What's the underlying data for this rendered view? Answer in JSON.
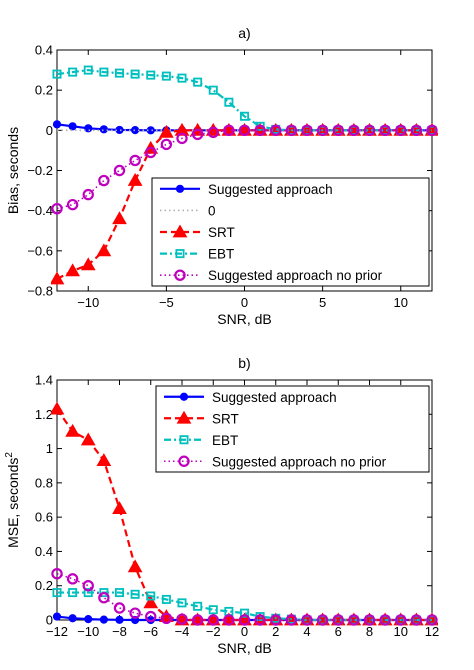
{
  "chart_data": [
    {
      "type": "line",
      "title": "a)",
      "xlabel": "SNR, dB",
      "ylabel": "Bias, seconds",
      "xlim": [
        -12,
        12
      ],
      "ylim": [
        -0.8,
        0.4
      ],
      "xticks": [
        -10,
        -5,
        0,
        5,
        10
      ],
      "yticks": [
        -0.8,
        -0.6,
        -0.4,
        -0.2,
        0,
        0.2,
        0.4
      ],
      "xtick_labels": [
        "−10",
        "−5",
        "0",
        "5",
        "10"
      ],
      "ytick_labels": [
        "−0.8",
        "−0.6",
        "−0.4",
        "−0.2",
        "0",
        "0.2",
        "0.4"
      ],
      "grid": false,
      "legend_position": "bottom-right",
      "x": [
        -12,
        -11,
        -10,
        -9,
        -8,
        -7,
        -6,
        -5,
        -4,
        -3,
        -2,
        -1,
        0,
        1,
        2,
        3,
        4,
        5,
        6,
        7,
        8,
        9,
        10,
        11,
        12
      ],
      "series": [
        {
          "name": "Suggested approach",
          "color": "#0000ff",
          "line": "solid",
          "marker": "filled-circle",
          "values": [
            0.03,
            0.02,
            0.01,
            0.005,
            0.002,
            0.001,
            0,
            0,
            0,
            0,
            0,
            0,
            0,
            0,
            0,
            0,
            0,
            0,
            0,
            0,
            0,
            0,
            0,
            0,
            0
          ]
        },
        {
          "name": "0",
          "color": "#b0b0b0",
          "line": "dotted",
          "marker": "none",
          "values": [
            0,
            0,
            0,
            0,
            0,
            0,
            0,
            0,
            0,
            0,
            0,
            0,
            0,
            0,
            0,
            0,
            0,
            0,
            0,
            0,
            0,
            0,
            0,
            0,
            0
          ]
        },
        {
          "name": "SRT",
          "color": "#ff0000",
          "line": "dashed",
          "marker": "triangle",
          "values": [
            -0.74,
            -0.7,
            -0.67,
            -0.6,
            -0.44,
            -0.25,
            -0.09,
            -0.01,
            0,
            0,
            0,
            0,
            0,
            0,
            0,
            0,
            0,
            0,
            0,
            0,
            0,
            0,
            0,
            0,
            0
          ]
        },
        {
          "name": "EBT",
          "color": "#00bfbf",
          "line": "dash-dot",
          "marker": "square",
          "values": [
            0.28,
            0.29,
            0.3,
            0.29,
            0.285,
            0.28,
            0.275,
            0.27,
            0.26,
            0.24,
            0.2,
            0.14,
            0.07,
            0.02,
            0.005,
            0,
            0,
            0,
            0,
            0,
            0,
            0,
            0,
            0,
            0
          ]
        },
        {
          "name": "Suggested approach no prior",
          "color": "#bf00bf",
          "line": "dotted",
          "marker": "circle",
          "values": [
            -0.39,
            -0.37,
            -0.32,
            -0.25,
            -0.2,
            -0.15,
            -0.11,
            -0.07,
            -0.04,
            -0.02,
            -0.01,
            0,
            0,
            0,
            0,
            0,
            0,
            0,
            0,
            0,
            0,
            0,
            0,
            0,
            0
          ]
        }
      ]
    },
    {
      "type": "line",
      "title": "b)",
      "xlabel": "SNR, dB",
      "ylabel": "MSE, seconds",
      "ylabel_superscript": "2",
      "xlim": [
        -12,
        12
      ],
      "ylim": [
        0,
        1.4
      ],
      "xticks": [
        -12,
        -10,
        -8,
        -6,
        -4,
        -2,
        0,
        2,
        4,
        6,
        8,
        10,
        12
      ],
      "yticks": [
        0,
        0.2,
        0.4,
        0.6,
        0.8,
        1,
        1.2,
        1.4
      ],
      "xtick_labels": [
        "−12",
        "−10",
        "−8",
        "−6",
        "−4",
        "−2",
        "0",
        "2",
        "4",
        "6",
        "8",
        "10",
        "12"
      ],
      "ytick_labels": [
        "0",
        "0.2",
        "0.4",
        "0.6",
        "0.8",
        "1",
        "1.2",
        "1.4"
      ],
      "grid": false,
      "legend_position": "top-right",
      "x": [
        -12,
        -11,
        -10,
        -9,
        -8,
        -7,
        -6,
        -5,
        -4,
        -3,
        -2,
        -1,
        0,
        1,
        2,
        3,
        4,
        5,
        6,
        7,
        8,
        9,
        10,
        11,
        12
      ],
      "series": [
        {
          "name": "Suggested approach",
          "color": "#0000ff",
          "line": "solid",
          "marker": "filled-circle",
          "values": [
            0.02,
            0.01,
            0.005,
            0.002,
            0.001,
            0,
            0,
            0,
            0,
            0,
            0,
            0,
            0,
            0,
            0,
            0,
            0,
            0,
            0,
            0,
            0,
            0,
            0,
            0,
            0
          ]
        },
        {
          "name": "SRT",
          "color": "#ff0000",
          "line": "dashed",
          "marker": "triangle",
          "values": [
            1.23,
            1.1,
            1.05,
            0.93,
            0.65,
            0.31,
            0.1,
            0.02,
            0,
            0,
            0,
            0,
            0,
            0,
            0,
            0,
            0,
            0,
            0,
            0,
            0,
            0,
            0,
            0,
            0
          ]
        },
        {
          "name": "EBT",
          "color": "#00bfbf",
          "line": "dash-dot",
          "marker": "square",
          "values": [
            0.16,
            0.16,
            0.16,
            0.16,
            0.16,
            0.15,
            0.14,
            0.12,
            0.1,
            0.08,
            0.06,
            0.05,
            0.04,
            0.02,
            0.01,
            0.005,
            0,
            0,
            0,
            0,
            0,
            0,
            0,
            0,
            0
          ]
        },
        {
          "name": "Suggested approach no prior",
          "color": "#bf00bf",
          "line": "dotted",
          "marker": "circle",
          "values": [
            0.27,
            0.24,
            0.2,
            0.13,
            0.07,
            0.04,
            0.02,
            0.01,
            0.005,
            0,
            0,
            0,
            0,
            0,
            0,
            0,
            0,
            0,
            0,
            0,
            0,
            0,
            0,
            0,
            0
          ]
        }
      ]
    }
  ]
}
